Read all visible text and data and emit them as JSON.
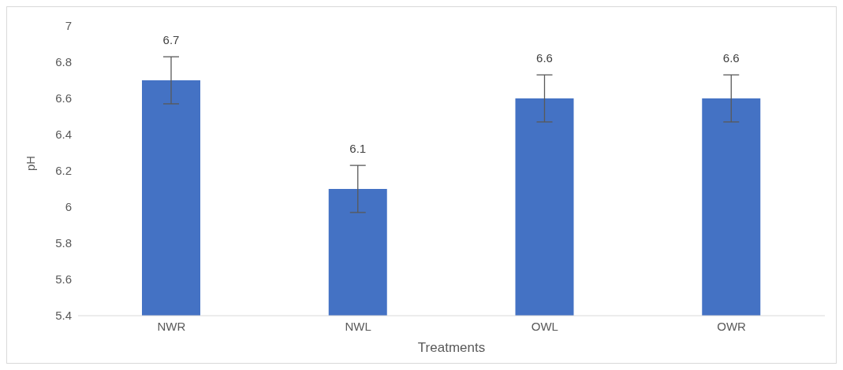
{
  "chart_data": {
    "type": "bar",
    "xlabel": "Treatments",
    "ylabel": "pH",
    "categories": [
      "NWR",
      "NWL",
      "OWL",
      "OWR"
    ],
    "values": [
      6.7,
      6.1,
      6.6,
      6.6
    ],
    "errors": [
      0.13,
      0.13,
      0.13,
      0.13
    ],
    "color": "#4472c4",
    "ylim": [
      5.4,
      7
    ],
    "yticks": [
      5.4,
      5.6,
      5.8,
      6,
      6.2,
      6.4,
      6.6,
      6.8,
      7
    ],
    "data_labels": true,
    "grid": false,
    "legend": false
  }
}
